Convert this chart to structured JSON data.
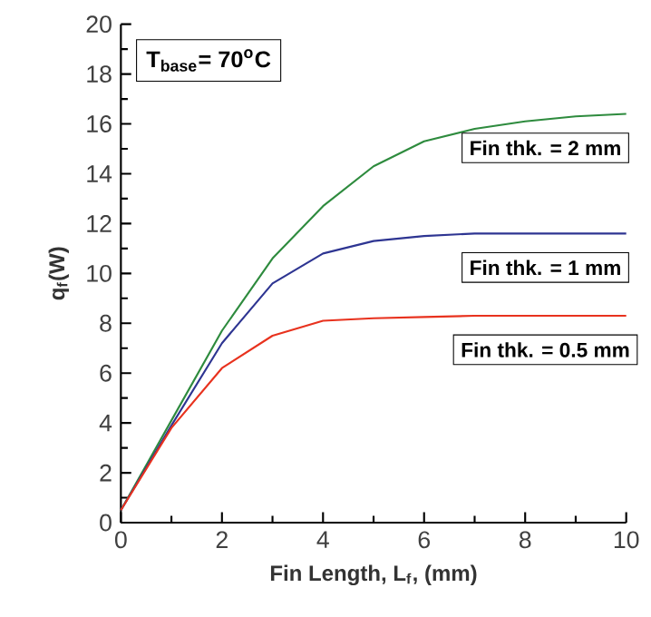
{
  "chart_data": {
    "type": "line",
    "xlabel": "Fin Length, L$_{f}$, (mm)",
    "ylabel": "q$_{f}$(W)",
    "annotations": [
      "T$_{base}$= 70$^{o}$C"
    ],
    "xlim": [
      0,
      10
    ],
    "ylim": [
      0,
      20
    ],
    "xticks": [
      0,
      2,
      4,
      6,
      8,
      10
    ],
    "yticks": [
      0,
      2,
      4,
      6,
      8,
      10,
      12,
      14,
      16,
      18,
      20
    ],
    "grid": false,
    "legend": false,
    "marker": "none",
    "line_style": "solid",
    "x": [
      0,
      1,
      2,
      3,
      4,
      5,
      6,
      7,
      8,
      9,
      10
    ],
    "series": [
      {
        "name": "Fin thk. = 2 mm",
        "color": "#2e8b3e",
        "values": [
          0.5,
          4.1,
          7.7,
          10.6,
          12.7,
          14.3,
          15.3,
          15.8,
          16.1,
          16.3,
          16.4
        ]
      },
      {
        "name": "Fin thk. = 1 mm",
        "color": "#2e3592",
        "values": [
          0.5,
          3.9,
          7.2,
          9.6,
          10.8,
          11.3,
          11.5,
          11.6,
          11.6,
          11.6,
          11.6
        ]
      },
      {
        "name": "Fin thk. = 0.5 mm",
        "color": "#e8321e",
        "values": [
          0.5,
          3.8,
          6.2,
          7.5,
          8.1,
          8.2,
          8.25,
          8.3,
          8.3,
          8.3,
          8.3
        ]
      }
    ]
  }
}
